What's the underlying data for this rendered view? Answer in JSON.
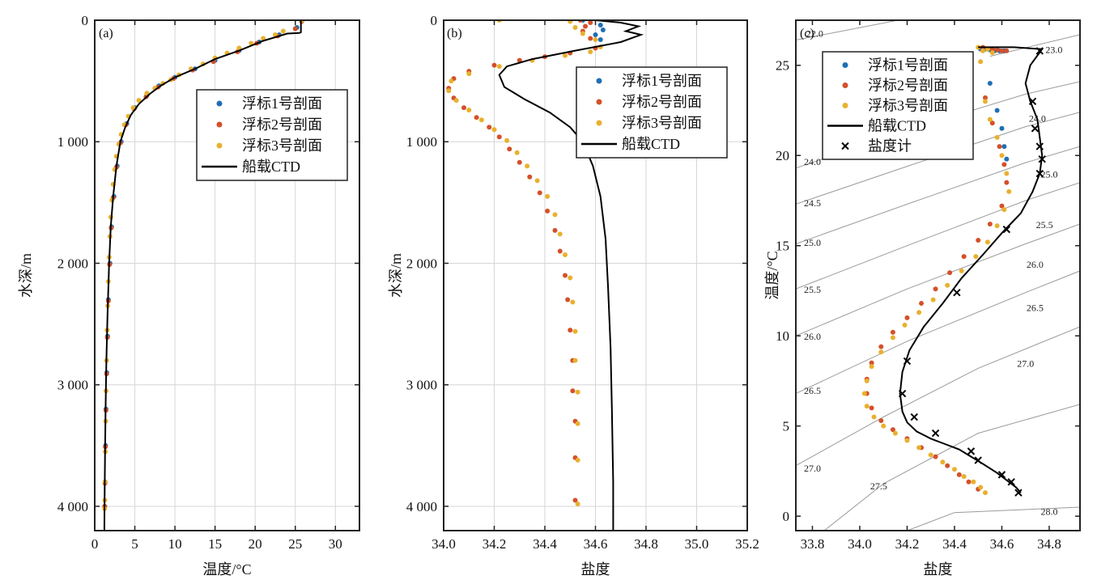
{
  "colors": {
    "float1": "#1f6fb4",
    "float2": "#d4502a",
    "float3": "#e8b12e",
    "ship": "#000000",
    "grid": "#d6d6d6",
    "contour": "#9a9a9a"
  },
  "chart_data": [
    {
      "type": "scatter",
      "panel": "(a)",
      "xlabel": "温度/°C",
      "ylabel": "水深/m",
      "xlim": [
        0,
        33
      ],
      "ylim": [
        4200,
        0
      ],
      "y_reversed": true,
      "xticks": [
        0,
        5,
        10,
        15,
        20,
        25,
        30
      ],
      "xtick_labels": [
        "0",
        "5",
        "10",
        "15",
        "20",
        "25",
        "30"
      ],
      "yticks": [
        0,
        1000,
        2000,
        3000,
        4000
      ],
      "ytick_labels": [
        "0",
        "1 000",
        "2 000",
        "3 000",
        "4 000"
      ],
      "grid": true,
      "legend_position": "right",
      "legend": [
        "浮标1号剖面",
        "浮标2号剖面",
        "浮标3号剖面",
        "船载CTD"
      ],
      "series": [
        {
          "name": "浮标1号剖面",
          "kind": "points",
          "color_key": "float1",
          "x": [
            25.8,
            25.2,
            23.0,
            20.5,
            18.0,
            15.0,
            12.5,
            10.0,
            8.0,
            6.5,
            5.0,
            4.0,
            3.3,
            2.8,
            2.4,
            2.1,
            1.9,
            1.7,
            1.6,
            1.5,
            1.4,
            1.35,
            1.3,
            1.25
          ],
          "y": [
            0,
            60,
            120,
            180,
            250,
            330,
            400,
            470,
            540,
            620,
            720,
            850,
            1000,
            1200,
            1450,
            1700,
            2000,
            2300,
            2600,
            2900,
            3200,
            3500,
            3800,
            4000
          ]
        },
        {
          "name": "浮标2号剖面",
          "kind": "points",
          "color_key": "float2",
          "x": [
            25.8,
            25.0,
            22.8,
            20.2,
            17.8,
            14.8,
            12.2,
            9.8,
            7.9,
            6.4,
            4.9,
            3.9,
            3.2,
            2.7,
            2.3,
            2.05,
            1.85,
            1.7,
            1.58,
            1.48,
            1.4,
            1.33,
            1.28,
            1.24
          ],
          "y": [
            10,
            70,
            130,
            190,
            260,
            340,
            410,
            480,
            550,
            630,
            730,
            860,
            1010,
            1210,
            1460,
            1710,
            2010,
            2310,
            2610,
            2910,
            3210,
            3510,
            3810,
            4000
          ]
        },
        {
          "name": "浮标3号剖面",
          "kind": "points",
          "color_key": "float3",
          "x": [
            25.9,
            23.5,
            22.5,
            21.0,
            19.5,
            18.0,
            16.5,
            15.0,
            13.5,
            12.0,
            10.5,
            9.5,
            8.5,
            7.5,
            6.5,
            5.5,
            4.8,
            4.2,
            3.7,
            3.3,
            3.0,
            2.7,
            2.5,
            2.3,
            2.15,
            2.0,
            1.9,
            1.8,
            1.7,
            1.62,
            1.55,
            1.48,
            1.42,
            1.37,
            1.33,
            1.29,
            1.26,
            1.23
          ],
          "y": [
            0,
            90,
            120,
            150,
            190,
            230,
            270,
            310,
            360,
            400,
            450,
            490,
            520,
            560,
            600,
            660,
            720,
            790,
            860,
            940,
            1020,
            1120,
            1230,
            1350,
            1480,
            1620,
            1780,
            1950,
            2150,
            2350,
            2550,
            2800,
            3050,
            3300,
            3550,
            3800,
            3950,
            4020
          ]
        },
        {
          "name": "船载CTD",
          "kind": "line",
          "color_key": "ship",
          "x": [
            25.7,
            25.7,
            25.5,
            24.0,
            21.0,
            18.0,
            15.0,
            12.5,
            10.0,
            8.2,
            6.8,
            5.5,
            4.5,
            3.8,
            3.2,
            2.7,
            2.3,
            2.0,
            1.8,
            1.6,
            1.45,
            1.35,
            1.28,
            1.22,
            1.2
          ],
          "y": [
            0,
            100,
            105,
            110,
            170,
            250,
            320,
            400,
            470,
            540,
            610,
            690,
            780,
            880,
            1000,
            1200,
            1450,
            1700,
            2000,
            2400,
            2800,
            3200,
            3600,
            4000,
            4200
          ]
        }
      ]
    },
    {
      "type": "scatter",
      "panel": "(b)",
      "xlabel": "盐度",
      "ylabel": "水深/m",
      "xlim": [
        34.0,
        35.2
      ],
      "ylim": [
        4200,
        0
      ],
      "y_reversed": true,
      "xticks": [
        34.0,
        34.2,
        34.4,
        34.6,
        34.8,
        35.0,
        35.2
      ],
      "xtick_labels": [
        "34.0",
        "34.2",
        "34.4",
        "34.6",
        "34.8",
        "35.0",
        "35.2"
      ],
      "yticks": [
        0,
        1000,
        2000,
        3000,
        4000
      ],
      "ytick_labels": [
        "0",
        "1 000",
        "2 000",
        "3 000",
        "4 000"
      ],
      "grid": true,
      "legend_position": "top-right",
      "legend": [
        "浮标1号剖面",
        "浮标2号剖面",
        "浮标3号剖面",
        "船载CTD"
      ],
      "series": [
        {
          "name": "浮标1号剖面",
          "kind": "points",
          "color_key": "float1",
          "x": [
            34.55,
            34.62,
            34.63,
            34.6,
            34.62
          ],
          "y": [
            0,
            40,
            80,
            120,
            160
          ]
        },
        {
          "name": "浮标2号剖面",
          "kind": "points",
          "color_key": "float2",
          "x": [
            34.54,
            34.58,
            34.56,
            34.55,
            34.58,
            34.6,
            34.5,
            34.4,
            34.3,
            34.2,
            34.1,
            34.04,
            34.02,
            34.04,
            34.08,
            34.13,
            34.18,
            34.22,
            34.26,
            34.3,
            34.34,
            34.38,
            34.41,
            34.44,
            34.46,
            34.48,
            34.49,
            34.5,
            34.51,
            34.51,
            34.52,
            34.52,
            34.52
          ],
          "y": [
            0,
            20,
            50,
            90,
            150,
            230,
            270,
            300,
            330,
            370,
            420,
            480,
            560,
            640,
            720,
            800,
            880,
            960,
            1060,
            1170,
            1290,
            1420,
            1570,
            1730,
            1900,
            2100,
            2300,
            2550,
            2800,
            3050,
            3300,
            3600,
            3950
          ]
        },
        {
          "name": "浮标3号剖面",
          "kind": "points",
          "color_key": "float3",
          "x": [
            34.22,
            34.5,
            34.52,
            34.55,
            34.6,
            34.62,
            34.58,
            34.48,
            34.35,
            34.22,
            34.1,
            34.03,
            34.02,
            34.05,
            34.1,
            34.15,
            34.2,
            34.25,
            34.29,
            34.33,
            34.37,
            34.41,
            34.44,
            34.46,
            34.48,
            34.5,
            34.51,
            34.52,
            34.52,
            34.53,
            34.53,
            34.53,
            34.53
          ],
          "y": [
            0,
            10,
            60,
            110,
            160,
            220,
            260,
            290,
            330,
            380,
            440,
            500,
            580,
            660,
            740,
            820,
            900,
            990,
            1090,
            1200,
            1320,
            1450,
            1600,
            1760,
            1930,
            2120,
            2320,
            2560,
            2800,
            3060,
            3320,
            3620,
            3980
          ]
        },
        {
          "name": "船载CTD",
          "kind": "line",
          "color_key": "ship",
          "x": [
            34.6,
            34.7,
            34.77,
            34.72,
            34.78,
            34.7,
            34.52,
            34.35,
            34.25,
            34.22,
            34.24,
            34.32,
            34.42,
            34.5,
            34.55,
            34.59,
            34.62,
            34.64,
            34.65,
            34.66,
            34.665,
            34.67,
            34.67
          ],
          "y": [
            0,
            20,
            50,
            90,
            120,
            180,
            250,
            320,
            380,
            450,
            550,
            650,
            760,
            880,
            1000,
            1200,
            1450,
            1800,
            2200,
            2700,
            3200,
            3800,
            4200
          ]
        }
      ]
    },
    {
      "type": "scatter",
      "panel": "(c)",
      "xlabel": "盐度",
      "ylabel": "温度/°C",
      "xlim": [
        33.73,
        34.93
      ],
      "ylim": [
        -0.8,
        27.5
      ],
      "xticks": [
        33.8,
        34.0,
        34.2,
        34.4,
        34.6,
        34.8
      ],
      "xtick_labels": [
        "33.8",
        "34.0",
        "34.2",
        "34.4",
        "34.6",
        "34.8"
      ],
      "yticks": [
        0,
        5,
        10,
        15,
        20,
        25
      ],
      "ytick_labels": [
        "0",
        "5",
        "10",
        "15",
        "20",
        "25"
      ],
      "grid": false,
      "legend_position": "top-left",
      "legend": [
        "浮标1号剖面",
        "浮标2号剖面",
        "浮标3号剖面",
        "船载CTD",
        "盐度计"
      ],
      "contour_labels": [
        "22.0",
        "23.0",
        "24.0",
        "24.0",
        "24.5",
        "25.0",
        "25.0",
        "25.5",
        "25.5",
        "26.0",
        "26.0",
        "26.5",
        "26.5",
        "27.0",
        "27.0",
        "27.5",
        "28.0"
      ],
      "series": [
        {
          "name": "浮标1号剖面",
          "kind": "points",
          "color_key": "float1",
          "x": [
            34.51,
            34.53,
            34.55,
            34.57,
            34.59,
            34.61,
            34.55,
            34.58,
            34.6,
            34.61,
            34.62
          ],
          "y": [
            25.9,
            25.9,
            25.85,
            25.8,
            25.8,
            25.8,
            24.0,
            22.5,
            21.5,
            20.5,
            19.8
          ]
        },
        {
          "name": "浮标2号剖面",
          "kind": "points",
          "color_key": "float2",
          "x": [
            34.52,
            34.54,
            34.56,
            34.58,
            34.6,
            34.62,
            34.53,
            34.56,
            34.59,
            34.61,
            34.62,
            34.6,
            34.55,
            34.5,
            34.44,
            34.38,
            34.32,
            34.26,
            34.2,
            34.14,
            34.09,
            34.05,
            34.03,
            34.03,
            34.05,
            34.09,
            34.14,
            34.2,
            34.26,
            34.32,
            34.37,
            34.42,
            34.46,
            34.5
          ],
          "y": [
            26.0,
            25.9,
            25.9,
            25.85,
            25.8,
            25.8,
            23.2,
            21.8,
            20.5,
            19.5,
            18.5,
            17.2,
            16.2,
            15.3,
            14.4,
            13.5,
            12.6,
            11.8,
            11.0,
            10.2,
            9.4,
            8.5,
            7.6,
            6.8,
            6.0,
            5.3,
            4.8,
            4.3,
            3.8,
            3.3,
            2.8,
            2.3,
            1.9,
            1.5
          ]
        },
        {
          "name": "浮标3号剖面",
          "kind": "points",
          "color_key": "float3",
          "x": [
            34.5,
            34.52,
            34.54,
            34.56,
            34.51,
            34.53,
            34.55,
            34.58,
            34.6,
            34.62,
            34.63,
            34.61,
            34.58,
            34.54,
            34.49,
            34.43,
            34.37,
            34.31,
            34.25,
            34.19,
            34.14,
            34.09,
            34.05,
            34.03,
            34.02,
            34.03,
            34.06,
            34.1,
            34.15,
            34.2,
            34.25,
            34.3,
            34.35,
            34.4,
            34.44,
            34.48,
            34.51,
            34.53
          ],
          "y": [
            26.0,
            25.8,
            25.9,
            25.7,
            25.2,
            23.0,
            22.0,
            21.0,
            20.0,
            19.0,
            18.0,
            17.0,
            16.1,
            15.2,
            14.4,
            13.6,
            12.8,
            12.0,
            11.3,
            10.6,
            9.9,
            9.1,
            8.3,
            7.5,
            6.8,
            6.1,
            5.5,
            5.0,
            4.6,
            4.2,
            3.8,
            3.4,
            3.0,
            2.6,
            2.2,
            1.9,
            1.6,
            1.3
          ]
        },
        {
          "name": "船载CTD",
          "kind": "line",
          "color_key": "ship",
          "x": [
            34.5,
            34.55,
            34.65,
            34.77,
            34.72,
            34.7,
            34.72,
            34.75,
            34.76,
            34.77,
            34.76,
            34.73,
            34.68,
            34.6,
            34.52,
            34.43,
            34.35,
            34.27,
            34.21,
            34.18,
            34.17,
            34.18,
            34.2,
            34.24,
            34.3,
            34.36,
            34.42,
            34.47,
            34.52,
            34.58,
            34.62,
            34.66,
            34.68
          ],
          "y": [
            26.0,
            26.0,
            26.0,
            25.9,
            25.0,
            24.0,
            23.0,
            22.0,
            21.0,
            20.0,
            19.0,
            18.0,
            16.8,
            15.7,
            14.5,
            13.2,
            11.8,
            10.5,
            9.2,
            8.0,
            6.8,
            5.8,
            5.2,
            4.7,
            4.3,
            4.0,
            3.7,
            3.3,
            2.9,
            2.4,
            2.0,
            1.6,
            1.3
          ]
        },
        {
          "name": "盐度计",
          "kind": "crosses",
          "color_key": "ship",
          "x": [
            34.76,
            34.73,
            34.74,
            34.76,
            34.77,
            34.76,
            34.62,
            34.41,
            34.2,
            34.18,
            34.23,
            34.32,
            34.47,
            34.5,
            34.6,
            34.64,
            34.67
          ],
          "y": [
            25.8,
            23.0,
            21.5,
            20.5,
            19.8,
            19.0,
            15.9,
            12.4,
            8.6,
            6.8,
            5.5,
            4.6,
            3.6,
            3.1,
            2.3,
            1.9,
            1.3
          ]
        }
      ]
    }
  ]
}
